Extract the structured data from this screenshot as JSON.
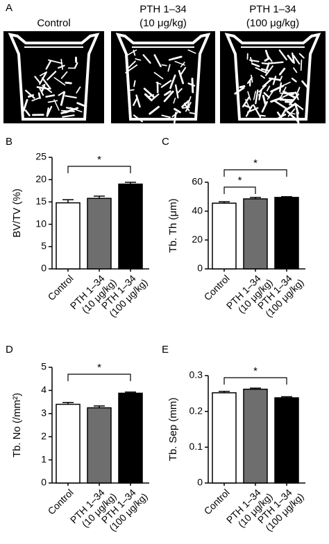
{
  "panel_a": {
    "label": "A",
    "images": [
      {
        "label": [
          "Control"
        ]
      },
      {
        "label": [
          "PTH 1–34",
          "(10 μg/kg)"
        ]
      },
      {
        "label": [
          "PTH 1–34",
          "(100 μg/kg)"
        ]
      }
    ]
  },
  "chart_data": [
    {
      "type": "bar",
      "panel": "B",
      "y_label": "BV/TV (%)",
      "categories": [
        [
          "Control"
        ],
        [
          "PTH 1–34",
          "(10 μg/kg)"
        ],
        [
          "PTH 1–34",
          "(100 μg/kg)"
        ]
      ],
      "values": [
        14.8,
        15.8,
        19.0
      ],
      "errors": [
        0.7,
        0.5,
        0.4
      ],
      "colors": [
        "#ffffff",
        "#6e6e6e",
        "#000000"
      ],
      "ylim": [
        0,
        25
      ],
      "yticks": [
        0,
        5,
        10,
        15,
        20,
        25
      ],
      "significance": [
        {
          "between": [
            0,
            2
          ],
          "label": "*"
        }
      ]
    },
    {
      "type": "bar",
      "panel": "C",
      "y_label": "Tb. Th (μm)",
      "categories": [
        [
          "Control"
        ],
        [
          "PTH 1–34",
          "(10 μg/kg)"
        ],
        [
          "PTH 1–34",
          "(100 μg/kg)"
        ]
      ],
      "values": [
        45.5,
        48.5,
        49.5
      ],
      "errors": [
        1.0,
        1.0,
        0.5
      ],
      "colors": [
        "#ffffff",
        "#6e6e6e",
        "#000000"
      ],
      "ylim": [
        0,
        60
      ],
      "yticks": [
        0,
        20,
        40,
        60
      ],
      "significance": [
        {
          "between": [
            0,
            1
          ],
          "label": "*"
        },
        {
          "between": [
            0,
            2
          ],
          "label": "*"
        }
      ]
    },
    {
      "type": "bar",
      "panel": "D",
      "y_label": "Tb. No (/mm²)",
      "categories": [
        [
          "Control"
        ],
        [
          "PTH 1–34",
          "(10 μg/kg)"
        ],
        [
          "PTH 1–34",
          "(100 μg/kg)"
        ]
      ],
      "values": [
        3.4,
        3.25,
        3.88
      ],
      "errors": [
        0.08,
        0.08,
        0.05
      ],
      "colors": [
        "#ffffff",
        "#6e6e6e",
        "#000000"
      ],
      "ylim": [
        0,
        5
      ],
      "yticks": [
        0,
        1,
        2,
        3,
        4,
        5
      ],
      "significance": [
        {
          "between": [
            0,
            2
          ],
          "label": "*"
        }
      ]
    },
    {
      "type": "bar",
      "panel": "E",
      "y_label": "Tb. Sep (mm)",
      "categories": [
        [
          "Control"
        ],
        [
          "PTH 1–34",
          "(10 μg/kg)"
        ],
        [
          "PTH 1–34",
          "(100 μg/kg)"
        ]
      ],
      "values": [
        0.252,
        0.262,
        0.238
      ],
      "errors": [
        0.004,
        0.003,
        0.003
      ],
      "colors": [
        "#ffffff",
        "#6e6e6e",
        "#000000"
      ],
      "ylim": [
        0,
        0.3
      ],
      "yticks": [
        0,
        0.1,
        0.2,
        0.3
      ],
      "significance": [
        {
          "between": [
            0,
            2
          ],
          "label": "*"
        }
      ]
    }
  ]
}
